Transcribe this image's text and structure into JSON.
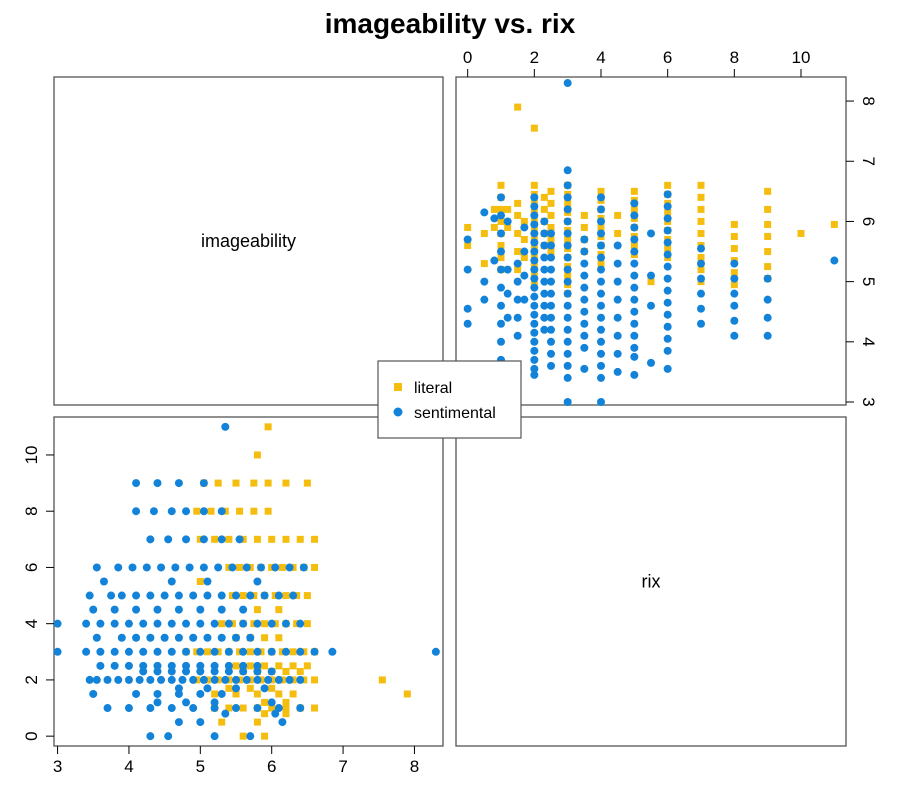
{
  "chart_data": {
    "type": "scatter",
    "layout": "scatterplot-matrix",
    "title": "imageability vs. rix",
    "variables": [
      "imageability",
      "rix"
    ],
    "axes": {
      "imageability": {
        "range": [
          2.95,
          8.4
        ],
        "ticks": [
          3,
          4,
          5,
          6,
          7,
          8
        ]
      },
      "rix": {
        "range": [
          -0.35,
          11.35
        ],
        "ticks": [
          0,
          2,
          4,
          6,
          8,
          10
        ]
      }
    },
    "grid": false,
    "legend": {
      "position": "center",
      "entries": [
        "literal",
        "sentimental"
      ]
    },
    "series": [
      {
        "name": "literal",
        "color": "#F5BE0F",
        "marker": "square",
        "points": [
          [
            5.9,
            0
          ],
          [
            5.6,
            0
          ],
          [
            5.3,
            0.5
          ],
          [
            5.8,
            0.5
          ],
          [
            6.2,
            0.8
          ],
          [
            5.9,
            0.8
          ],
          [
            6.6,
            1
          ],
          [
            6.4,
            1
          ],
          [
            6.2,
            1
          ],
          [
            6.0,
            1
          ],
          [
            5.8,
            1
          ],
          [
            5.6,
            1
          ],
          [
            5.4,
            1
          ],
          [
            5.2,
            1
          ],
          [
            6.2,
            1.2
          ],
          [
            5.9,
            1.2
          ],
          [
            7.9,
            1.5
          ],
          [
            6.3,
            1.5
          ],
          [
            6.1,
            1.5
          ],
          [
            5.8,
            1.5
          ],
          [
            5.5,
            1.5
          ],
          [
            5.2,
            1.5
          ],
          [
            6.0,
            1.7
          ],
          [
            5.7,
            1.7
          ],
          [
            5.4,
            1.7
          ],
          [
            7.55,
            2
          ],
          [
            6.6,
            2
          ],
          [
            6.45,
            2
          ],
          [
            6.3,
            2
          ],
          [
            6.15,
            2
          ],
          [
            6.0,
            2
          ],
          [
            5.85,
            2
          ],
          [
            5.7,
            2
          ],
          [
            5.55,
            2
          ],
          [
            5.4,
            2
          ],
          [
            5.25,
            2
          ],
          [
            5.1,
            2
          ],
          [
            4.95,
            2
          ],
          [
            6.4,
            2.3
          ],
          [
            6.2,
            2.3
          ],
          [
            6.0,
            2.3
          ],
          [
            5.8,
            2.3
          ],
          [
            5.6,
            2.3
          ],
          [
            6.5,
            2.5
          ],
          [
            6.3,
            2.5
          ],
          [
            6.1,
            2.5
          ],
          [
            5.9,
            2.5
          ],
          [
            5.7,
            2.5
          ],
          [
            5.5,
            2.5
          ],
          [
            6.6,
            3
          ],
          [
            6.45,
            3
          ],
          [
            6.3,
            3
          ],
          [
            6.15,
            3
          ],
          [
            6.0,
            3
          ],
          [
            5.85,
            3
          ],
          [
            5.7,
            3
          ],
          [
            5.55,
            3
          ],
          [
            5.4,
            3
          ],
          [
            5.25,
            3
          ],
          [
            5.1,
            3
          ],
          [
            4.95,
            3
          ],
          [
            4.8,
            3
          ],
          [
            6.1,
            3.5
          ],
          [
            5.9,
            3.5
          ],
          [
            5.7,
            3.5
          ],
          [
            5.5,
            3.5
          ],
          [
            6.5,
            4
          ],
          [
            6.35,
            4
          ],
          [
            6.2,
            4
          ],
          [
            6.05,
            4
          ],
          [
            5.9,
            4
          ],
          [
            5.75,
            4
          ],
          [
            5.6,
            4
          ],
          [
            5.45,
            4
          ],
          [
            5.3,
            4
          ],
          [
            6.1,
            4.5
          ],
          [
            5.8,
            4.5
          ],
          [
            6.5,
            5
          ],
          [
            6.35,
            5
          ],
          [
            6.2,
            5
          ],
          [
            6.05,
            5
          ],
          [
            5.9,
            5
          ],
          [
            5.75,
            5
          ],
          [
            5.6,
            5
          ],
          [
            5.45,
            5
          ],
          [
            5.0,
            5.5
          ],
          [
            6.6,
            6
          ],
          [
            6.45,
            6
          ],
          [
            6.3,
            6
          ],
          [
            6.15,
            6
          ],
          [
            6.0,
            6
          ],
          [
            5.85,
            6
          ],
          [
            5.7,
            6
          ],
          [
            5.55,
            6
          ],
          [
            5.4,
            6
          ],
          [
            6.6,
            7
          ],
          [
            6.4,
            7
          ],
          [
            6.2,
            7
          ],
          [
            6.0,
            7
          ],
          [
            5.8,
            7
          ],
          [
            5.6,
            7
          ],
          [
            5.4,
            7
          ],
          [
            5.2,
            7
          ],
          [
            5.0,
            7
          ],
          [
            5.95,
            8
          ],
          [
            5.75,
            8
          ],
          [
            5.55,
            8
          ],
          [
            5.35,
            8
          ],
          [
            5.15,
            8
          ],
          [
            4.95,
            8
          ],
          [
            6.5,
            9
          ],
          [
            6.2,
            9
          ],
          [
            5.95,
            9
          ],
          [
            5.75,
            9
          ],
          [
            5.5,
            9
          ],
          [
            5.25,
            9
          ],
          [
            5.05,
            9
          ],
          [
            5.8,
            10
          ],
          [
            5.95,
            11
          ]
        ]
      },
      {
        "name": "sentimental",
        "color": "#1283D8",
        "marker": "circle",
        "points": [
          [
            5.7,
            0
          ],
          [
            5.2,
            0
          ],
          [
            4.55,
            0
          ],
          [
            4.3,
            0
          ],
          [
            6.15,
            0.5
          ],
          [
            5.0,
            0.5
          ],
          [
            4.7,
            0.5
          ],
          [
            6.05,
            0.8
          ],
          [
            5.35,
            0.8
          ],
          [
            6.4,
            1
          ],
          [
            6.1,
            1
          ],
          [
            5.8,
            1
          ],
          [
            5.5,
            1
          ],
          [
            5.2,
            1
          ],
          [
            4.9,
            1
          ],
          [
            4.6,
            1
          ],
          [
            4.3,
            1
          ],
          [
            4.0,
            1
          ],
          [
            3.7,
            1
          ],
          [
            6.0,
            1.2
          ],
          [
            5.2,
            1.2
          ],
          [
            4.8,
            1.2
          ],
          [
            4.4,
            1.2
          ],
          [
            5.3,
            1.5
          ],
          [
            5.0,
            1.5
          ],
          [
            4.7,
            1.5
          ],
          [
            4.4,
            1.5
          ],
          [
            4.1,
            1.5
          ],
          [
            3.5,
            1.5
          ],
          [
            5.9,
            1.7
          ],
          [
            5.5,
            1.7
          ],
          [
            5.1,
            1.7
          ],
          [
            4.7,
            1.7
          ],
          [
            6.4,
            2
          ],
          [
            6.25,
            2
          ],
          [
            6.1,
            2
          ],
          [
            5.95,
            2
          ],
          [
            5.8,
            2
          ],
          [
            5.65,
            2
          ],
          [
            5.5,
            2
          ],
          [
            5.35,
            2
          ],
          [
            5.2,
            2
          ],
          [
            5.05,
            2
          ],
          [
            4.9,
            2
          ],
          [
            4.75,
            2
          ],
          [
            4.6,
            2
          ],
          [
            4.45,
            2
          ],
          [
            4.3,
            2
          ],
          [
            4.15,
            2
          ],
          [
            4.0,
            2
          ],
          [
            3.85,
            2
          ],
          [
            3.7,
            2
          ],
          [
            3.55,
            2
          ],
          [
            3.45,
            2
          ],
          [
            6.0,
            2.3
          ],
          [
            5.8,
            2.3
          ],
          [
            5.6,
            2.3
          ],
          [
            5.4,
            2.3
          ],
          [
            5.2,
            2.3
          ],
          [
            5.0,
            2.3
          ],
          [
            4.8,
            2.3
          ],
          [
            4.6,
            2.3
          ],
          [
            4.4,
            2.3
          ],
          [
            4.2,
            2.3
          ],
          [
            5.8,
            2.5
          ],
          [
            5.6,
            2.5
          ],
          [
            5.4,
            2.5
          ],
          [
            5.2,
            2.5
          ],
          [
            5.0,
            2.5
          ],
          [
            4.8,
            2.5
          ],
          [
            4.6,
            2.5
          ],
          [
            4.4,
            2.5
          ],
          [
            4.2,
            2.5
          ],
          [
            4.0,
            2.5
          ],
          [
            3.8,
            2.5
          ],
          [
            3.6,
            2.5
          ],
          [
            8.3,
            3
          ],
          [
            6.85,
            3
          ],
          [
            6.6,
            3
          ],
          [
            6.4,
            3
          ],
          [
            6.2,
            3
          ],
          [
            6.0,
            3
          ],
          [
            5.8,
            3
          ],
          [
            5.6,
            3
          ],
          [
            5.4,
            3
          ],
          [
            5.2,
            3
          ],
          [
            5.0,
            3
          ],
          [
            4.8,
            3
          ],
          [
            4.6,
            3
          ],
          [
            4.4,
            3
          ],
          [
            4.2,
            3
          ],
          [
            4.0,
            3
          ],
          [
            3.8,
            3
          ],
          [
            3.6,
            3
          ],
          [
            3.4,
            3
          ],
          [
            3.0,
            3
          ],
          [
            5.7,
            3.5
          ],
          [
            5.5,
            3.5
          ],
          [
            5.3,
            3.5
          ],
          [
            5.1,
            3.5
          ],
          [
            4.9,
            3.5
          ],
          [
            4.7,
            3.5
          ],
          [
            4.5,
            3.5
          ],
          [
            4.3,
            3.5
          ],
          [
            4.1,
            3.5
          ],
          [
            3.9,
            3.5
          ],
          [
            3.55,
            3.5
          ],
          [
            6.4,
            4
          ],
          [
            6.2,
            4
          ],
          [
            6.0,
            4
          ],
          [
            5.8,
            4
          ],
          [
            5.6,
            4
          ],
          [
            5.4,
            4
          ],
          [
            5.2,
            4
          ],
          [
            5.0,
            4
          ],
          [
            4.8,
            4
          ],
          [
            4.6,
            4
          ],
          [
            4.4,
            4
          ],
          [
            4.2,
            4
          ],
          [
            4.0,
            4
          ],
          [
            3.8,
            4
          ],
          [
            3.6,
            4
          ],
          [
            3.4,
            4
          ],
          [
            3.0,
            4
          ],
          [
            5.6,
            4.5
          ],
          [
            5.3,
            4.5
          ],
          [
            5.0,
            4.5
          ],
          [
            4.7,
            4.5
          ],
          [
            4.4,
            4.5
          ],
          [
            4.1,
            4.5
          ],
          [
            3.8,
            4.5
          ],
          [
            3.5,
            4.5
          ],
          [
            6.3,
            5
          ],
          [
            6.1,
            5
          ],
          [
            5.9,
            5
          ],
          [
            5.7,
            5
          ],
          [
            5.5,
            5
          ],
          [
            5.3,
            5
          ],
          [
            5.1,
            5
          ],
          [
            4.9,
            5
          ],
          [
            4.7,
            5
          ],
          [
            4.5,
            5
          ],
          [
            4.3,
            5
          ],
          [
            4.1,
            5
          ],
          [
            3.9,
            5
          ],
          [
            3.75,
            5
          ],
          [
            3.45,
            5
          ],
          [
            5.8,
            5.5
          ],
          [
            5.1,
            5.5
          ],
          [
            4.6,
            5.5
          ],
          [
            3.65,
            5.5
          ],
          [
            6.45,
            6
          ],
          [
            6.25,
            6
          ],
          [
            6.05,
            6
          ],
          [
            5.85,
            6
          ],
          [
            5.65,
            6
          ],
          [
            5.45,
            6
          ],
          [
            5.25,
            6
          ],
          [
            5.05,
            6
          ],
          [
            4.85,
            6
          ],
          [
            4.65,
            6
          ],
          [
            4.45,
            6
          ],
          [
            4.25,
            6
          ],
          [
            4.05,
            6
          ],
          [
            3.85,
            6
          ],
          [
            3.55,
            6
          ],
          [
            5.55,
            7
          ],
          [
            5.3,
            7
          ],
          [
            5.05,
            7
          ],
          [
            4.8,
            7
          ],
          [
            4.55,
            7
          ],
          [
            4.3,
            7
          ],
          [
            5.3,
            8
          ],
          [
            5.05,
            8
          ],
          [
            4.8,
            8
          ],
          [
            4.6,
            8
          ],
          [
            4.35,
            8
          ],
          [
            4.1,
            8
          ],
          [
            5.05,
            9
          ],
          [
            4.7,
            9
          ],
          [
            4.4,
            9
          ],
          [
            4.1,
            9
          ],
          [
            5.35,
            11
          ]
        ]
      }
    ]
  }
}
